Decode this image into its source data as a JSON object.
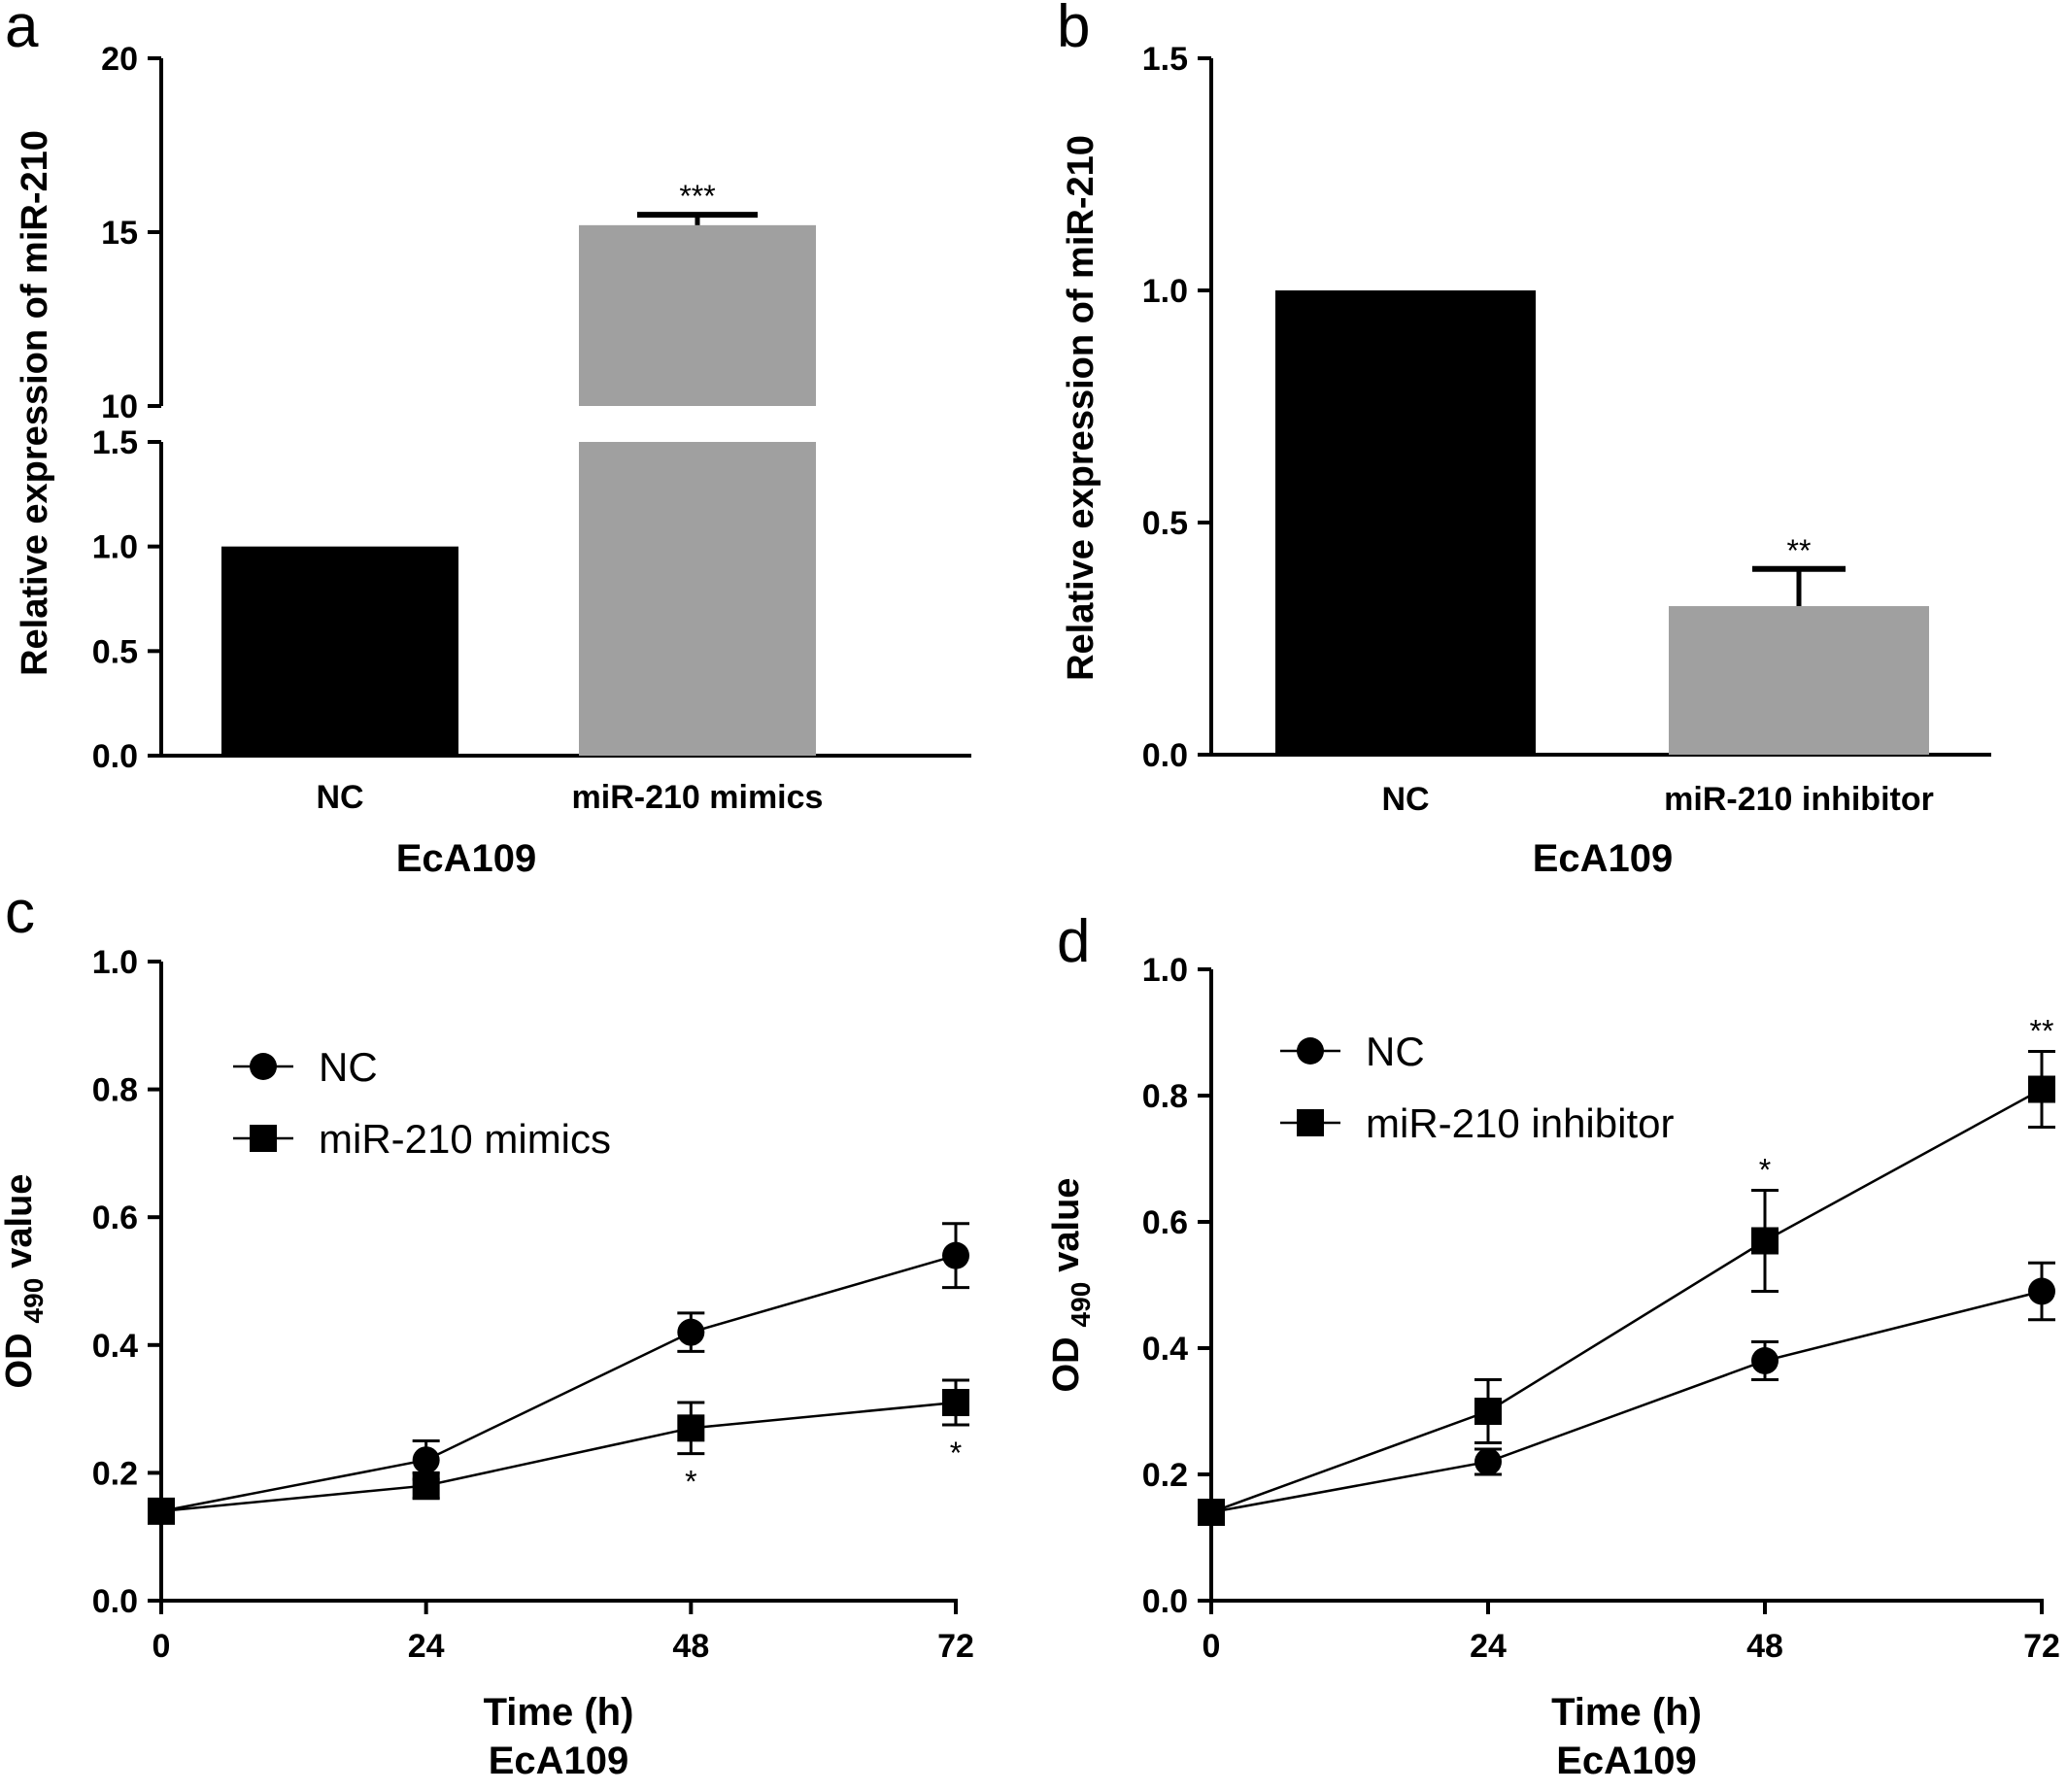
{
  "chart_data": [
    {
      "panel": "a",
      "type": "bar",
      "ylabel": "Relative expression of miR-210",
      "xlabel": "EcA109",
      "categories": [
        "NC",
        "miR-210 mimics"
      ],
      "values": [
        1.0,
        15.2
      ],
      "errors": [
        0,
        0.3
      ],
      "significance": [
        "",
        "***"
      ],
      "colors": [
        "#000000",
        "#a0a0a0"
      ],
      "ylim": [
        0,
        20
      ],
      "axis_break": {
        "lower": [
          0,
          1.5
        ],
        "upper": [
          10,
          20
        ]
      },
      "lower_ticks": [
        "0.0",
        "0.5",
        "1.0",
        "1.5"
      ],
      "upper_ticks": [
        "10",
        "15",
        "20"
      ]
    },
    {
      "panel": "b",
      "type": "bar",
      "ylabel": "Relative expression of miR-210",
      "xlabel": "EcA109",
      "categories": [
        "NC",
        "miR-210 inhibitor"
      ],
      "values": [
        1.0,
        0.32
      ],
      "errors": [
        0,
        0.08
      ],
      "significance": [
        "",
        "**"
      ],
      "colors": [
        "#000000",
        "#a0a0a0"
      ],
      "ylim": [
        0,
        1.5
      ],
      "yticks": [
        "0.0",
        "0.5",
        "1.0",
        "1.5"
      ]
    },
    {
      "panel": "c",
      "type": "line",
      "ylabel_main": "OD",
      "ylabel_sub": "490",
      "ylabel_tail": "value",
      "xlabel": "Time (h)",
      "xlabel2": "EcA109",
      "x": [
        0,
        24,
        48,
        72
      ],
      "xticks": [
        "0",
        "24",
        "48",
        "72"
      ],
      "ylim": [
        0,
        1.0
      ],
      "yticks": [
        "0.0",
        "0.2",
        "0.4",
        "0.6",
        "0.8",
        "1.0"
      ],
      "series": [
        {
          "name": "NC",
          "marker": "circle",
          "values": [
            0.14,
            0.22,
            0.42,
            0.54
          ],
          "errors": [
            0,
            0.03,
            0.03,
            0.05
          ],
          "significance": [
            "",
            "",
            "",
            ""
          ]
        },
        {
          "name": "miR-210 mimics",
          "marker": "square",
          "values": [
            0.14,
            0.18,
            0.27,
            0.31
          ],
          "errors": [
            0,
            0.02,
            0.04,
            0.035
          ],
          "significance": [
            "",
            "",
            "*",
            "*"
          ]
        }
      ]
    },
    {
      "panel": "d",
      "type": "line",
      "ylabel_main": "OD",
      "ylabel_sub": "490",
      "ylabel_tail": "value",
      "xlabel": "Time (h)",
      "xlabel2": "EcA109",
      "x": [
        0,
        24,
        48,
        72
      ],
      "xticks": [
        "0",
        "24",
        "48",
        "72"
      ],
      "ylim": [
        0,
        1.0
      ],
      "yticks": [
        "0.0",
        "0.2",
        "0.4",
        "0.6",
        "0.8",
        "1.0"
      ],
      "series": [
        {
          "name": "NC",
          "marker": "circle",
          "values": [
            0.14,
            0.22,
            0.38,
            0.49
          ],
          "errors": [
            0,
            0.02,
            0.03,
            0.045
          ],
          "significance": [
            "",
            "",
            "",
            ""
          ]
        },
        {
          "name": "miR-210 inhibitor",
          "marker": "square",
          "values": [
            0.14,
            0.3,
            0.57,
            0.81
          ],
          "errors": [
            0,
            0.05,
            0.08,
            0.06
          ],
          "significance": [
            "",
            "",
            "*",
            "**"
          ]
        }
      ]
    }
  ]
}
